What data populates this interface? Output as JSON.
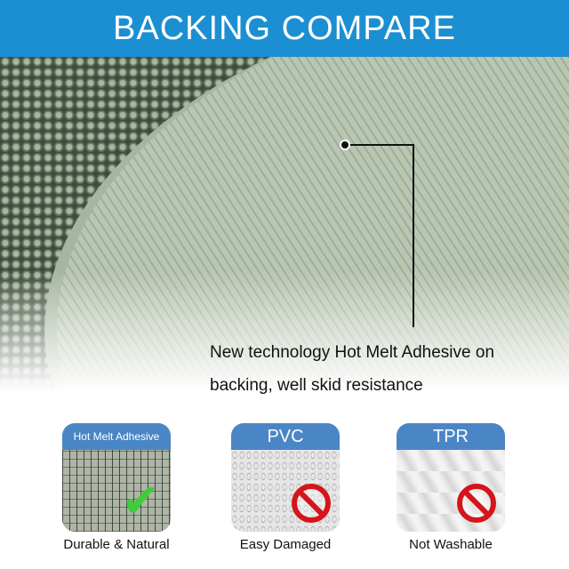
{
  "header": {
    "title": "BACKING COMPARE"
  },
  "callout": {
    "line1": "New technology Hot Melt Adhesive on",
    "line2": "backing, well skid resistance"
  },
  "cards": [
    {
      "tab": "Hot Melt Adhesive",
      "caption": "Durable & Natural",
      "icon": "check-icon"
    },
    {
      "tab": "PVC",
      "caption": "Easy Damaged",
      "icon": "prohibited-icon"
    },
    {
      "tab": "TPR",
      "caption": "Not Washable",
      "icon": "prohibited-icon"
    }
  ],
  "colors": {
    "header": "#1b8fd2",
    "tab": "#4a86c5",
    "check": "#3fcc3a",
    "prohibited": "#d4151b"
  }
}
